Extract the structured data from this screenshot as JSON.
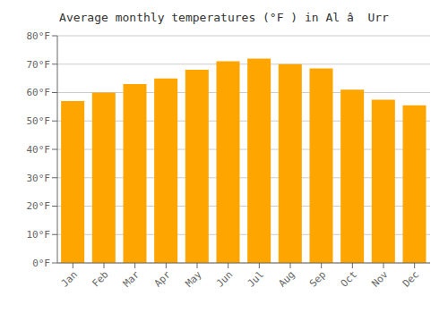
{
  "chart_data": {
    "type": "bar",
    "title": "Average monthly temperatures (°F ) in Al â  Urr",
    "categories": [
      "Jan",
      "Feb",
      "Mar",
      "Apr",
      "May",
      "Jun",
      "Jul",
      "Aug",
      "Sep",
      "Oct",
      "Nov",
      "Dec"
    ],
    "values": [
      57,
      60,
      63,
      65,
      68,
      71,
      72,
      70,
      68.5,
      61,
      57.5,
      55.5
    ],
    "color": "#FFA500",
    "ylim": [
      0,
      80
    ],
    "yticks": [
      {
        "value": 0,
        "label": "0°F"
      },
      {
        "value": 10,
        "label": "10°F"
      },
      {
        "value": 20,
        "label": "20°F"
      },
      {
        "value": 30,
        "label": "30°F"
      },
      {
        "value": 40,
        "label": "40°F"
      },
      {
        "value": 50,
        "label": "50°F"
      },
      {
        "value": 60,
        "label": "60°F"
      },
      {
        "value": 70,
        "label": "70°F"
      },
      {
        "value": 80,
        "label": "80°F"
      }
    ],
    "grid": true
  }
}
